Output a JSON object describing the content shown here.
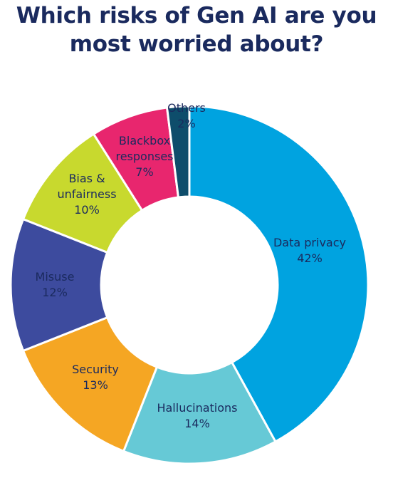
{
  "title_lines": [
    "Which risks of Gen AI are you",
    "most worried about?"
  ],
  "chart_data": {
    "type": "pie",
    "title": "Which risks of Gen AI are you most worried about?",
    "donut": true,
    "direction": "clockwise",
    "start": "12 o'clock",
    "value_unit": "%",
    "slices": [
      {
        "label": "Data privacy",
        "label_lines": [
          "Data privacy"
        ],
        "value": 42,
        "value_label": "42%",
        "color": "#00a3e0"
      },
      {
        "label": "Hallucinations",
        "label_lines": [
          "Hallucinations"
        ],
        "value": 14,
        "value_label": "14%",
        "color": "#66c9d6"
      },
      {
        "label": "Security",
        "label_lines": [
          "Security"
        ],
        "value": 13,
        "value_label": "13%",
        "color": "#f5a623"
      },
      {
        "label": "Misuse",
        "label_lines": [
          "Misuse"
        ],
        "value": 12,
        "value_label": "12%",
        "color": "#3d4b9e"
      },
      {
        "label": "Bias & unfairness",
        "label_lines": [
          "Bias &",
          "unfairness"
        ],
        "value": 10,
        "value_label": "10%",
        "color": "#c8d92e"
      },
      {
        "label": "Blackbox responses",
        "label_lines": [
          "Blackbox",
          "responses"
        ],
        "value": 7,
        "value_label": "7%",
        "color": "#e8266e"
      },
      {
        "label": "Others",
        "label_lines": [
          "Others"
        ],
        "value": 2,
        "value_label": "2%",
        "color": "#0e4d6b"
      }
    ]
  }
}
